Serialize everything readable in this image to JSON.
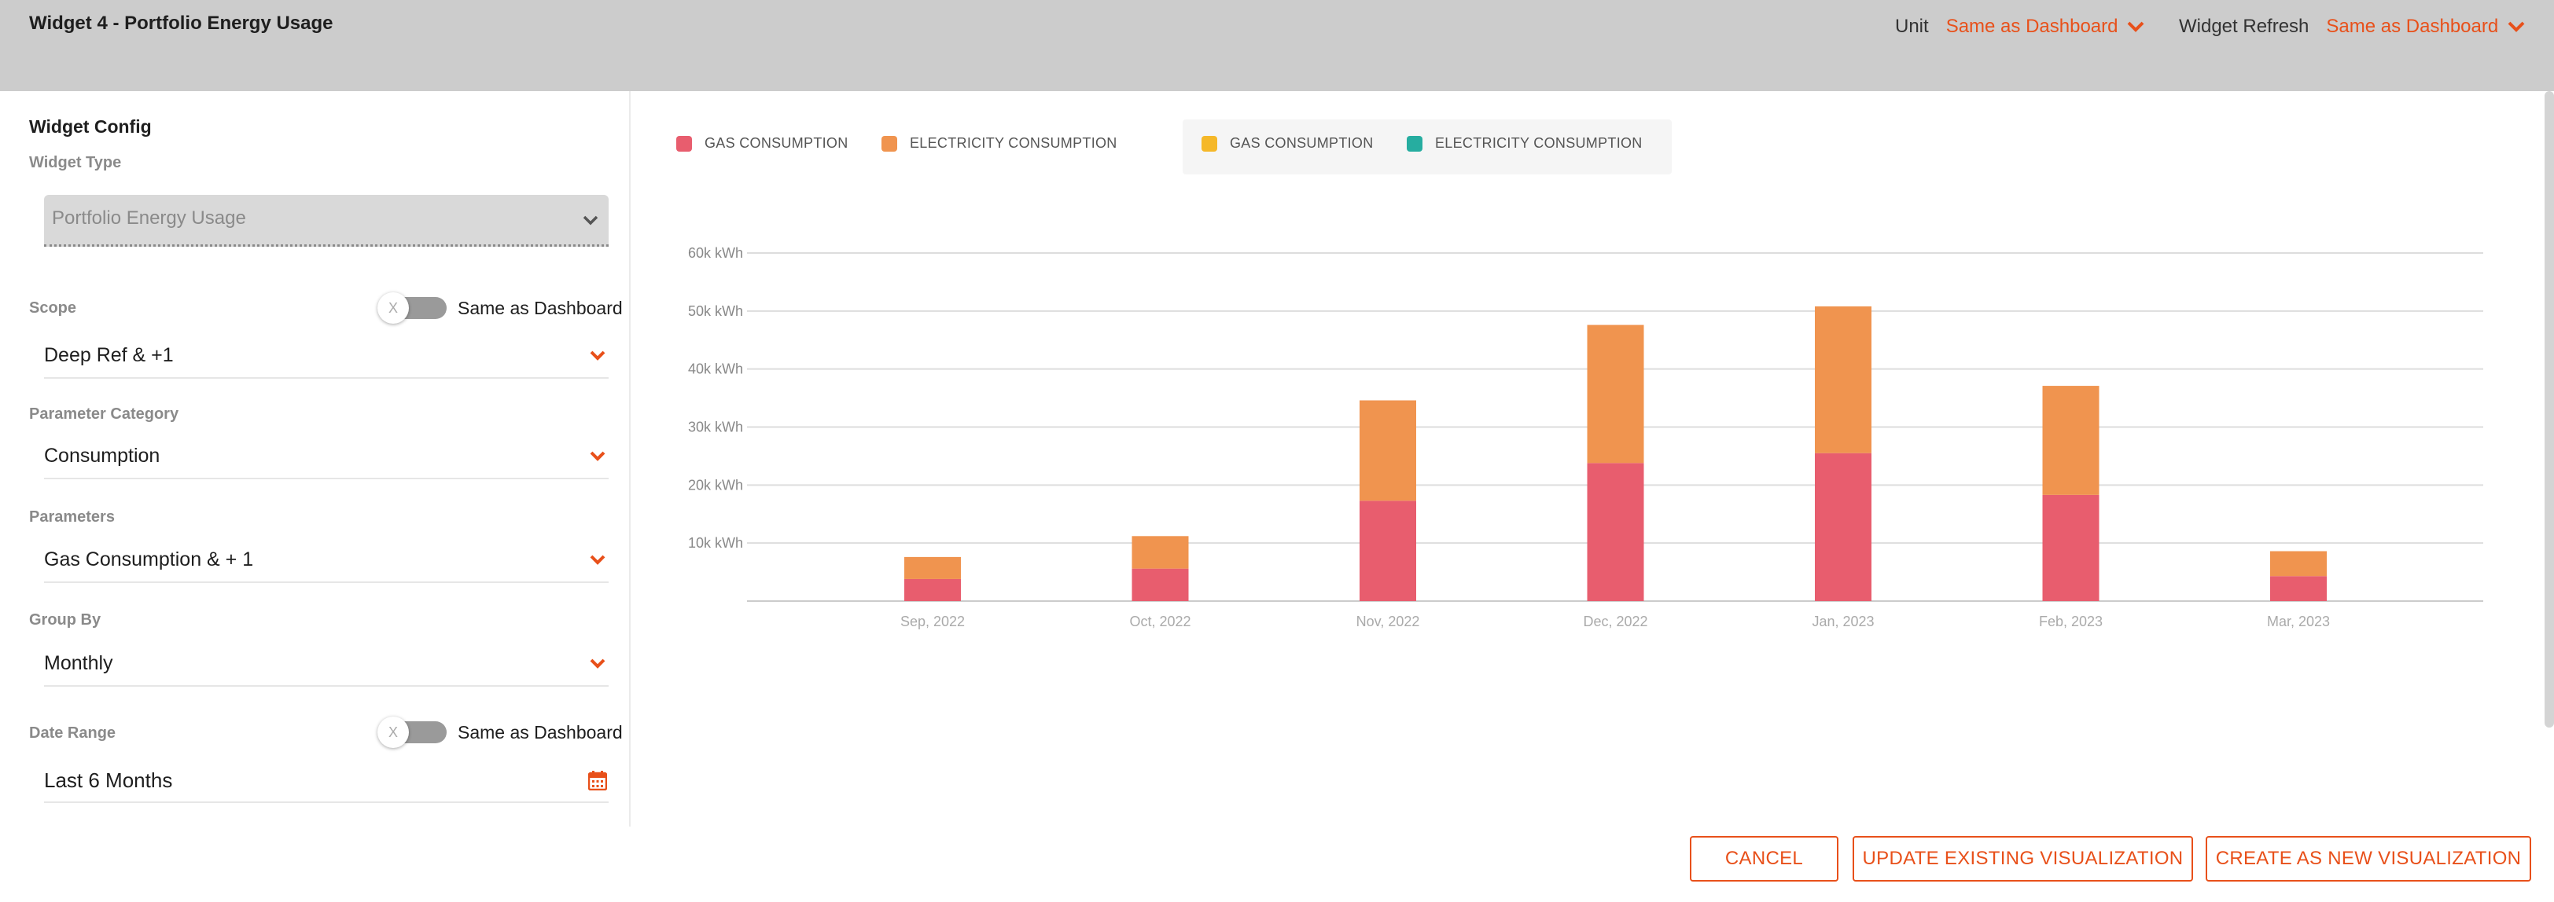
{
  "header": {
    "title": "Widget 4 - Portfolio Energy Usage",
    "unit_label": "Unit",
    "unit_value": "Same as Dashboard",
    "refresh_label": "Widget Refresh",
    "refresh_value": "Same as Dashboard"
  },
  "sidebar": {
    "title": "Widget Config",
    "widget_type_label": "Widget Type",
    "widget_type_value": "Portfolio Energy Usage",
    "scope_label": "Scope",
    "scope_toggle_label": "Same as Dashboard",
    "scope_value": "Deep Ref & +1",
    "param_category_label": "Parameter Category",
    "param_category_value": "Consumption",
    "parameters_label": "Parameters",
    "parameters_value": "Gas Consumption & + 1",
    "group_by_label": "Group By",
    "group_by_value": "Monthly",
    "date_range_label": "Date Range",
    "date_range_toggle_label": "Same as Dashboard",
    "date_range_value": "Last 6 Months",
    "toggle_off_glyph": "X"
  },
  "legend": [
    {
      "label": "GAS CONSUMPTION",
      "color": "#e85d6e"
    },
    {
      "label": "ELECTRICITY CONSUMPTION",
      "color": "#f0944f"
    },
    {
      "label": "GAS CONSUMPTION",
      "color": "#f5b829"
    },
    {
      "label": "ELECTRICITY CONSUMPTION",
      "color": "#26ada0"
    }
  ],
  "chart_data": {
    "type": "bar",
    "stacked": true,
    "categories": [
      "Sep, 2022",
      "Oct, 2022",
      "Nov, 2022",
      "Dec, 2022",
      "Jan, 2023",
      "Feb, 2023",
      "Mar, 2023"
    ],
    "series": [
      {
        "name": "GAS CONSUMPTION",
        "color": "#e85d6e",
        "values": [
          3800,
          5600,
          17300,
          23800,
          25500,
          18300,
          4300
        ]
      },
      {
        "name": "ELECTRICITY CONSUMPTION",
        "color": "#f0944f",
        "values": [
          3800,
          5600,
          17300,
          23800,
          25300,
          18800,
          4300
        ]
      }
    ],
    "y_ticks": [
      "10k kWh",
      "20k kWh",
      "30k kWh",
      "40k kWh",
      "50k kWh",
      "60k kWh"
    ],
    "ylim": [
      0,
      60000
    ],
    "grid": true,
    "legend_position": "top-left"
  },
  "buttons": {
    "cancel": "CANCEL",
    "update": "UPDATE EXISTING VISUALIZATION",
    "create": "CREATE AS NEW VISUALIZATION"
  },
  "colors": {
    "accent": "#e8501a",
    "header_bg": "#cccccc"
  },
  "icons": {
    "dropdown": "chevron-down-icon",
    "calendar": "calendar-icon"
  }
}
